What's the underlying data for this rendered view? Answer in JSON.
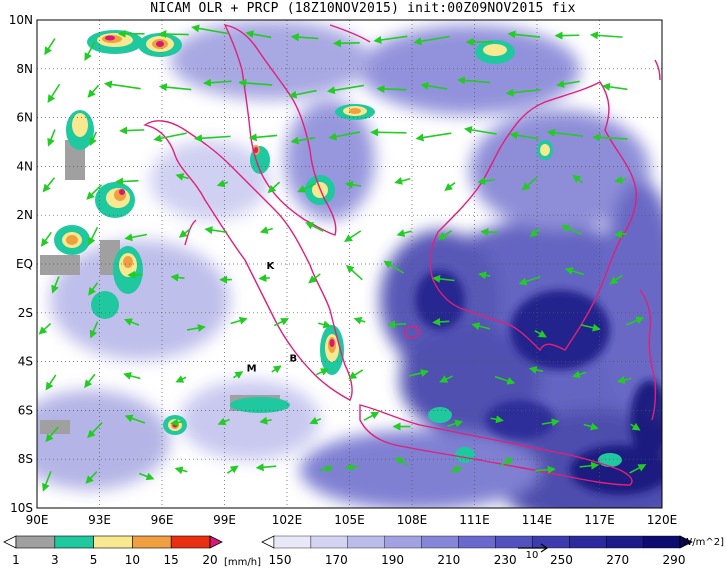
{
  "title": "NICAM OLR + PRCP (18Z10NOV2015) init:00Z09NOV2015 fix",
  "map": {
    "x_ticks": [
      "90E",
      "93E",
      "96E",
      "99E",
      "102E",
      "105E",
      "108E",
      "111E",
      "114E",
      "117E",
      "120E"
    ],
    "y_ticks": [
      "10N",
      "8N",
      "6N",
      "4N",
      "2N",
      "EQ",
      "2S",
      "4S",
      "6S",
      "8S",
      "10S"
    ],
    "lon_range": [
      90,
      120
    ],
    "lat_range": [
      -10,
      10
    ],
    "grid": "dotted",
    "place_markers": [
      {
        "label": "K",
        "lon": 101.2,
        "lat": -0.2
      },
      {
        "label": "M",
        "lon": 100.3,
        "lat": -4.4
      },
      {
        "label": "B",
        "lon": 102.3,
        "lat": -4.0
      }
    ],
    "colors": {
      "coastline": "#e0207a",
      "wind_vectors": "#22cc22",
      "cloud_olr": "#3a3aa8"
    }
  },
  "precip_colorbar": {
    "labels": [
      "1",
      "3",
      "5",
      "10",
      "15",
      "20"
    ],
    "unit": "[mm/h]",
    "colors": [
      "#a0a0a0",
      "#20c8a0",
      "#f8e890",
      "#f0a040",
      "#e83010",
      "#d81878"
    ]
  },
  "olr_colorbar": {
    "labels": [
      "150",
      "170",
      "190",
      "210",
      "230",
      "250",
      "270",
      "290"
    ],
    "unit": "[W/m^2]",
    "colors": [
      "#0c0c70",
      "#1c1c88",
      "#2a2a9c",
      "#3c3cae",
      "#5252be",
      "#6a6acc",
      "#8686d8",
      "#a2a2e2",
      "#bcbcea",
      "#d4d4f2",
      "#e8e8f8"
    ]
  },
  "vector_key_label": "10"
}
